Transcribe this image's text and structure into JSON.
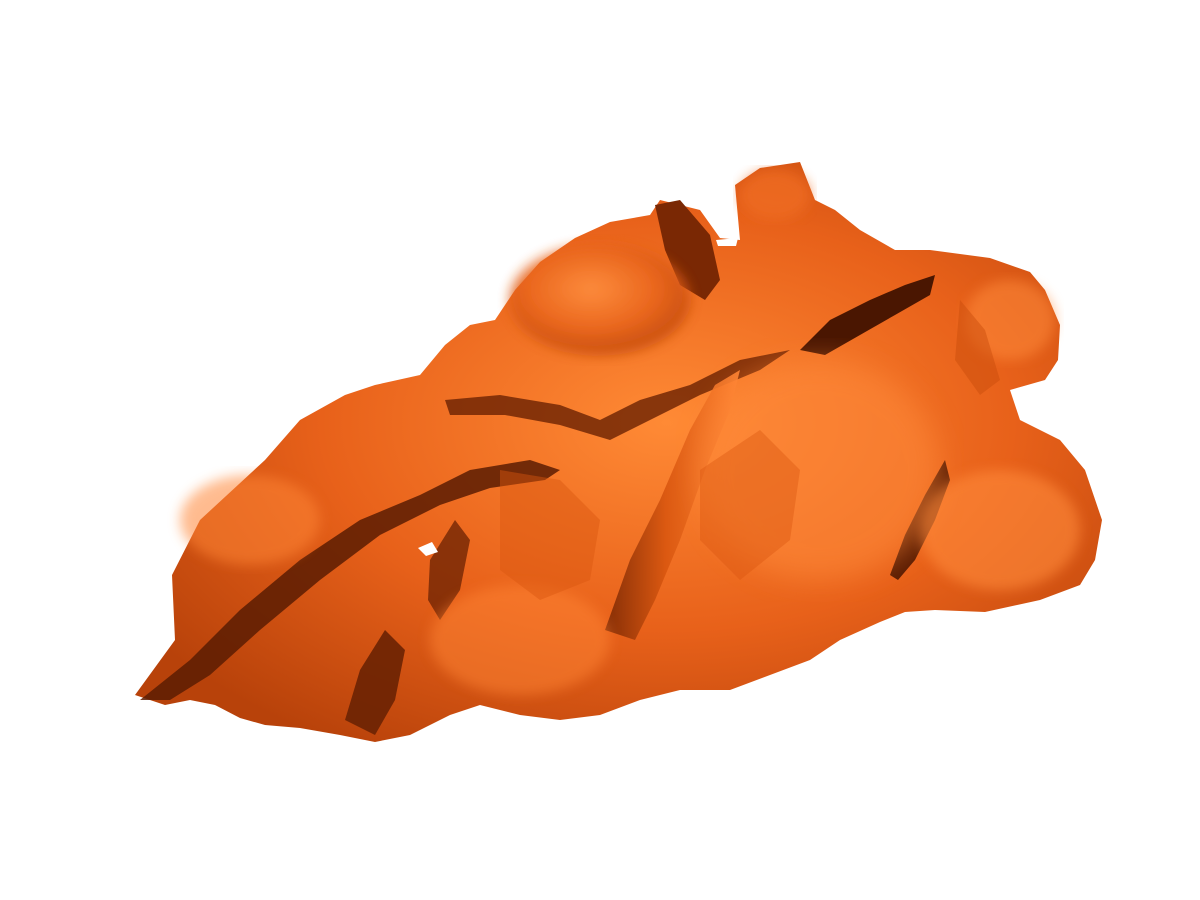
{
  "scene": {
    "subject": "rendered-3d-surface",
    "background_color": "#ffffff",
    "surface_base_color": "#e8611a",
    "surface_highlight_color": "#ff8a35",
    "surface_midtone_color": "#d9560f",
    "surface_shadow_color": "#8a2e05",
    "surface_deep_shadow_color": "#3a1200"
  }
}
